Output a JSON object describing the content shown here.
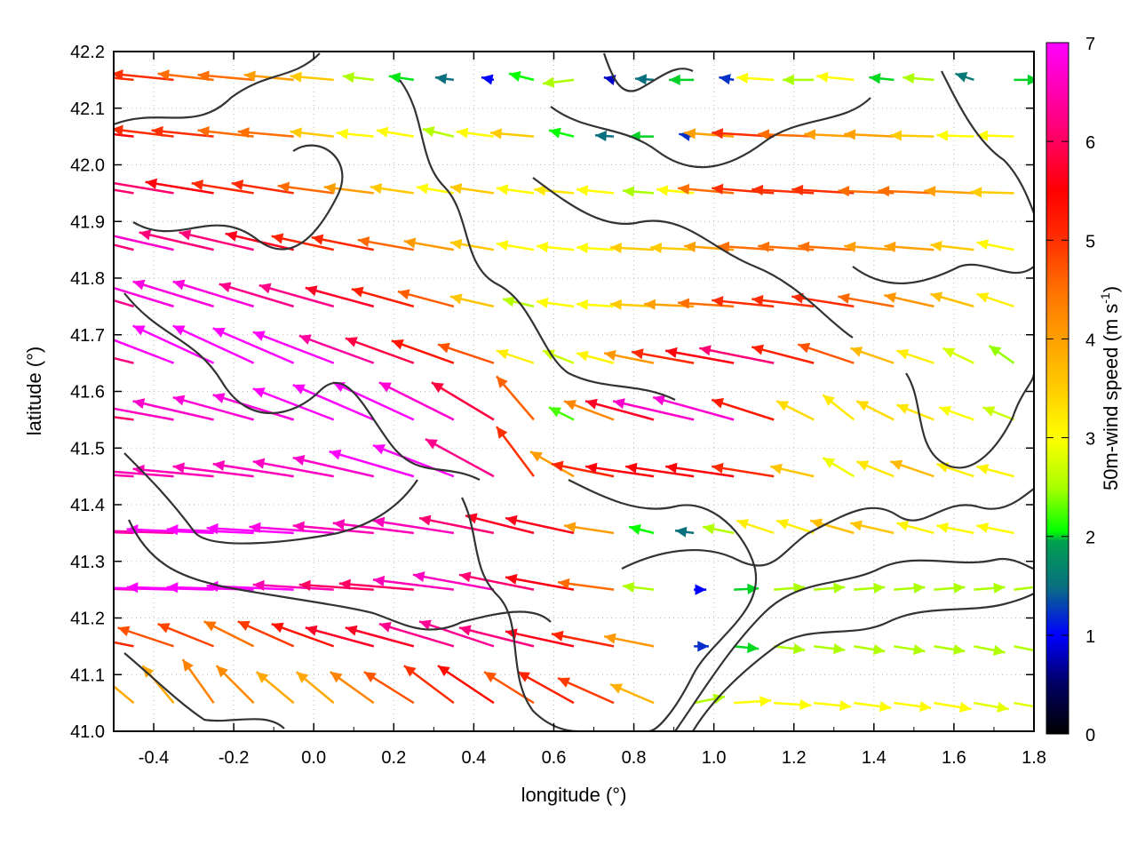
{
  "chart_data": {
    "type": "vector-field",
    "xlabel": "longitude (°)",
    "ylabel": "latitude (°)",
    "xlim": [
      -0.5,
      1.8
    ],
    "ylim": [
      41.0,
      42.2
    ],
    "xticks": [
      "-0.4",
      "-0.2",
      "0.0",
      "0.2",
      "0.4",
      "0.6",
      "0.8",
      "1.0",
      "1.2",
      "1.4",
      "1.6",
      "1.8"
    ],
    "yticks": [
      "41.0",
      "41.1",
      "41.2",
      "41.3",
      "41.4",
      "41.5",
      "41.6",
      "41.7",
      "41.8",
      "41.9",
      "42.0",
      "42.1",
      "42.2"
    ],
    "grid": true,
    "colorbar": {
      "label": "50m-wind speed (m s",
      "label_sup": "-1",
      "label_end": ")",
      "range": [
        0,
        7
      ],
      "ticks": [
        "0",
        "1",
        "2",
        "3",
        "4",
        "5",
        "6",
        "7"
      ],
      "stops": [
        [
          0,
          "#000000"
        ],
        [
          0.5,
          "#000060"
        ],
        [
          1,
          "#0000ff"
        ],
        [
          1.5,
          "#0a7080"
        ],
        [
          1.95,
          "#00a050"
        ],
        [
          2.05,
          "#00ff00"
        ],
        [
          2.5,
          "#aaff00"
        ],
        [
          3,
          "#ffff00"
        ],
        [
          3.5,
          "#ffcc00"
        ],
        [
          4,
          "#ffa000"
        ],
        [
          4.5,
          "#ff7000"
        ],
        [
          5,
          "#ff3000"
        ],
        [
          5.5,
          "#ff0000"
        ],
        [
          6,
          "#ff0060"
        ],
        [
          7,
          "#ff00ff"
        ]
      ]
    },
    "lon": [
      -0.45,
      -0.35,
      -0.25,
      -0.15,
      -0.05,
      0.05,
      0.15,
      0.25,
      0.35,
      0.45,
      0.55,
      0.65,
      0.75,
      0.85,
      0.95,
      1.05,
      1.15,
      1.25,
      1.35,
      1.45,
      1.55,
      1.65,
      1.75
    ],
    "lat": [
      42.15,
      42.05,
      41.95,
      41.85,
      41.75,
      41.65,
      41.55,
      41.45,
      41.35,
      41.25,
      41.15,
      41.05
    ],
    "u": [
      [
        -5,
        -5,
        -4.5,
        -4.5,
        -4,
        -3.5,
        -2.5,
        -2,
        -1.5,
        -1,
        -2,
        -2.5,
        -0.8,
        -1.5,
        -2,
        -1.2,
        -3,
        -2.5,
        -3,
        -2,
        -2.5,
        -1.5,
        2
      ],
      [
        -5.5,
        -5,
        -5,
        -4.5,
        -4.5,
        -3.5,
        -3,
        -3,
        -2.5,
        -3,
        -3.5,
        -2,
        -1.5,
        -2,
        -1.2,
        -4,
        -5,
        -4.5,
        -4,
        -4,
        -3.5,
        -3,
        -3
      ],
      [
        -6,
        -6,
        -5.5,
        -5,
        -5,
        -4.5,
        -4,
        -3.5,
        -3,
        -3.5,
        -3,
        -3.2,
        -3,
        -2.5,
        -3,
        -4.5,
        -5,
        -5,
        -5,
        -4.5,
        -4.5,
        -4,
        -3.5
      ],
      [
        -6,
        -6.5,
        -6,
        -6,
        -5.5,
        -5,
        -5,
        -4.5,
        -4,
        -3.5,
        -3,
        -3,
        -3,
        -3.5,
        -3.5,
        -4,
        -4.5,
        -4.5,
        -4.5,
        -4,
        -4,
        -3.5,
        -3
      ],
      [
        -6,
        -6.5,
        -6.5,
        -6.5,
        -6,
        -6,
        -5.5,
        -5,
        -4.5,
        -3.5,
        -2.5,
        -3,
        -3,
        -3.5,
        -4,
        -4.5,
        -5,
        -5,
        -5,
        -4.5,
        -4,
        -3.5,
        -3
      ],
      [
        -6,
        -6.5,
        -6.5,
        -6.5,
        -6.5,
        -6.5,
        -6,
        -5.5,
        -5,
        -4.5,
        -3,
        -2.5,
        -3,
        -4,
        -5,
        -5.5,
        -6,
        -5,
        -4.5,
        -3.5,
        -3,
        -2.5,
        -2
      ],
      [
        -6,
        -6.5,
        -6.5,
        -6.5,
        -6.5,
        -6.5,
        -6.5,
        -6.5,
        -6,
        -5,
        -3,
        -2,
        -4,
        -5.5,
        -6.5,
        -6.5,
        -5,
        -3,
        -2.5,
        -3,
        -3,
        -2.8,
        -2.5
      ],
      [
        -6.5,
        -6.5,
        -6.5,
        -6.5,
        -6.5,
        -6.5,
        -6.5,
        -6.8,
        -6.5,
        -5.5,
        -3,
        -3.5,
        -5,
        -5.5,
        -5.5,
        -5.5,
        -5,
        -3.5,
        -2.5,
        -3,
        -3.5,
        -3,
        -3
      ],
      [
        -6.5,
        -6.5,
        -7,
        -7,
        -7,
        -6.8,
        -6.5,
        -6.5,
        -6.5,
        -6,
        -5.5,
        -5.5,
        -4,
        -2,
        -1.5,
        -2.5,
        -3,
        -3,
        -3.5,
        -3.5,
        -3,
        -3,
        -3
      ],
      [
        -6.5,
        -7,
        -7,
        -7,
        -7,
        -6.5,
        -6,
        -6,
        -6.5,
        -6.5,
        -6,
        -5.5,
        -4.5,
        -2.5,
        1,
        2,
        2.5,
        2.5,
        2.5,
        2.5,
        2.5,
        2.5,
        2.5
      ],
      [
        -5,
        -4.5,
        -4.5,
        -4,
        -4.5,
        -5,
        -5.5,
        -5.5,
        -6,
        -6,
        -6,
        -5.5,
        -5,
        -4,
        1.2,
        2,
        2.5,
        2.5,
        2.5,
        2.5,
        2.5,
        2.5,
        2.5
      ],
      [
        -3,
        -2.5,
        -2.5,
        -3,
        -3,
        -3,
        -3.5,
        -4,
        -4,
        -4.5,
        -4,
        -4.5,
        -4.5,
        -3.5,
        2.5,
        3,
        3,
        3,
        3,
        3,
        3,
        2.8,
        2.8
      ]
    ],
    "v": [
      [
        0.5,
        0.5,
        0.5,
        0.4,
        0.4,
        0.3,
        0.3,
        0.3,
        0.2,
        0.2,
        0.5,
        -0.3,
        0.2,
        0.1,
        0,
        0.2,
        0.2,
        0,
        0.3,
        0.2,
        0.2,
        0.5,
        0
      ],
      [
        0.6,
        0.6,
        0.5,
        0.5,
        0.4,
        0.4,
        0.3,
        0.5,
        0.6,
        0.4,
        0.3,
        0.5,
        0.1,
        0,
        0.2,
        0.3,
        0.3,
        0.2,
        0.2,
        0.2,
        0.1,
        0.1,
        0.1
      ],
      [
        1,
        1,
        0.9,
        0.8,
        0.8,
        0.6,
        0.5,
        0.5,
        0.5,
        0.5,
        0.4,
        0.3,
        0.3,
        0.2,
        0.3,
        0.4,
        0.4,
        0.3,
        0.3,
        0.2,
        0.2,
        0.2,
        0.1
      ],
      [
        1.5,
        1.5,
        1.4,
        1.4,
        1.3,
        1.1,
        1,
        0.8,
        0.7,
        0.6,
        0.5,
        0.3,
        0.2,
        0.2,
        0.2,
        0.3,
        0.3,
        0.3,
        0.3,
        0.3,
        0.3,
        0.4,
        0.6
      ],
      [
        1.8,
        2,
        2,
        2,
        1.8,
        1.7,
        1.5,
        1.4,
        1.2,
        0.8,
        0.6,
        0.4,
        0.2,
        0.2,
        0.2,
        0.3,
        0.5,
        0.6,
        0.8,
        0.8,
        0.9,
        1,
        1
      ],
      [
        1.5,
        2.5,
        3,
        3,
        2.8,
        2.5,
        2.2,
        2,
        1.8,
        1.5,
        1,
        1,
        0.8,
        0.8,
        0.9,
        1,
        1.2,
        1.3,
        1.5,
        1.2,
        1,
        1.2,
        1.4
      ],
      [
        0.8,
        1.2,
        1.5,
        1.8,
        2,
        2.5,
        2.8,
        3,
        3,
        3,
        3.5,
        1,
        1.5,
        1.5,
        1.5,
        1.8,
        1.6,
        1.5,
        2,
        1.5,
        1.2,
        1,
        1
      ],
      [
        0.4,
        0.5,
        0.6,
        0.8,
        1,
        1.2,
        1.5,
        2,
        2.5,
        3,
        4,
        2,
        1,
        0.8,
        0.8,
        0.8,
        0.8,
        0.8,
        1.5,
        1.2,
        1.2,
        1,
        0.8
      ],
      [
        0.2,
        0.2,
        0.3,
        0.3,
        0.4,
        0.5,
        0.6,
        0.8,
        1,
        1.2,
        1.4,
        1.2,
        0.6,
        0.5,
        0.2,
        0.5,
        1,
        1,
        1,
        0.8,
        0.8,
        0.6,
        0.6
      ],
      [
        0.2,
        0.2,
        0.2,
        0.2,
        0.3,
        0.4,
        0.4,
        0.5,
        0.8,
        1.2,
        1.2,
        1,
        0.6,
        0.3,
        0,
        0.1,
        0.2,
        0.2,
        0.2,
        0.2,
        0.2,
        0.2,
        0.3
      ],
      [
        1,
        1.5,
        1.8,
        2,
        2,
        1.8,
        1.5,
        1.5,
        1.8,
        2,
        1.5,
        1.2,
        1,
        0.8,
        0,
        -0.2,
        -0.3,
        -0.3,
        -0.4,
        -0.4,
        -0.4,
        -0.5,
        -0.5
      ],
      [
        2.5,
        3,
        3.5,
        3,
        2.5,
        2.5,
        2.5,
        2.5,
        3,
        3,
        2.5,
        2.5,
        2,
        1.5,
        0.5,
        0.2,
        -0.2,
        -0.3,
        -0.4,
        -0.4,
        -0.5,
        -0.5,
        -0.5
      ]
    ]
  }
}
